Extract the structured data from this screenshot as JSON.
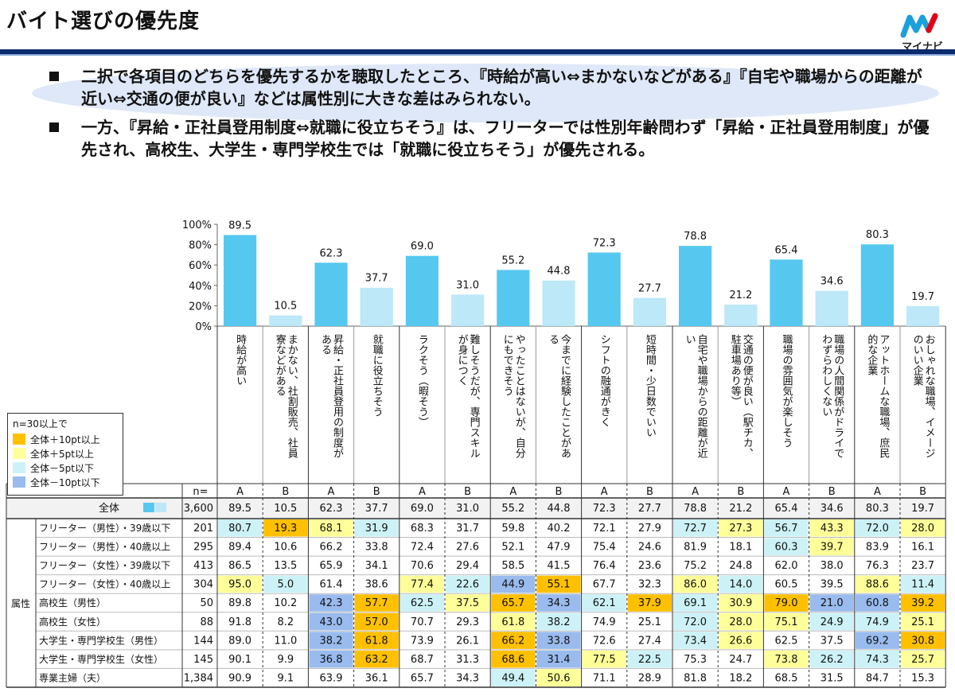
{
  "header": {
    "title": "バイト選びの優先度",
    "logo_text": "マイナビ",
    "logo_mark": "mynavi-logo-icon"
  },
  "bullets": [
    "二択で各項目のどちらを優先するかを聴取したところ、『時給が高い⇔まかないなどがある』『自宅や職場からの距離が近い⇔交通の便が良い』などは属性別に大きな差はみられない。",
    "一方、『昇給・正社員登用制度⇔就職に役立ちそう』は、フリーターでは性別年齢問わず「昇給・正社員登用制度」が優先され、高校生、大学生・専門学校生では「就職に役立ちそう」が優先される。"
  ],
  "legend": {
    "title": "n=30以上で",
    "items": [
      {
        "label": "全体＋10pt以上",
        "color": "#ffc000"
      },
      {
        "label": "全体＋5pt以上",
        "color": "#ffff99"
      },
      {
        "label": "全体－5pt以下",
        "color": "#ccf2f7"
      },
      {
        "label": "全体－10pt以下",
        "color": "#99bbee"
      }
    ]
  },
  "colors": {
    "bar_a": "#56c8f0",
    "bar_b": "#bce8f8",
    "total_row_bg": "#f2f2f2"
  },
  "chart_data": {
    "type": "bar",
    "ylim": [
      0,
      100
    ],
    "yticks": [
      "0%",
      "20%",
      "40%",
      "60%",
      "80%",
      "100%"
    ],
    "categories": [
      {
        "letter": "A",
        "label": "時給が高い"
      },
      {
        "letter": "B",
        "label": "まかない、社割販売、社員寮などがある"
      },
      {
        "letter": "A",
        "label": "昇給・正社員登用の制度がある"
      },
      {
        "letter": "B",
        "label": "就職に役立ちそう"
      },
      {
        "letter": "A",
        "label": "ラクそう（暇そう）"
      },
      {
        "letter": "B",
        "label": "難しそうだが、専門スキルが身につく"
      },
      {
        "letter": "A",
        "label": "やったことはないが、自分にもできそう"
      },
      {
        "letter": "B",
        "label": "今までに経験したことがある"
      },
      {
        "letter": "A",
        "label": "シフトの融通がきく"
      },
      {
        "letter": "B",
        "label": "短時間・少日数でいい"
      },
      {
        "letter": "A",
        "label": "自宅や職場からの距離が近い"
      },
      {
        "letter": "B",
        "label": "交通の便が良い（駅チカ、駐車場あり等）"
      },
      {
        "letter": "A",
        "label": "職場の雰囲気が楽しそう"
      },
      {
        "letter": "B",
        "label": "職場の人間関係がドライでわずらわしくない"
      },
      {
        "letter": "A",
        "label": "アットホームな職場、庶民的な企業"
      },
      {
        "letter": "B",
        "label": "おしゃれな職場、イメージのいい企業"
      }
    ],
    "overall_values": [
      89.5,
      10.5,
      62.3,
      37.7,
      69.0,
      31.0,
      55.2,
      44.8,
      72.3,
      27.7,
      78.8,
      21.2,
      65.4,
      34.6,
      80.3,
      19.7
    ],
    "table": {
      "n_header": "n=",
      "group_label": "属性",
      "total": {
        "label": "全体",
        "n": "3,600",
        "values": [
          "89.5",
          "10.5",
          "62.3",
          "37.7",
          "69.0",
          "31.0",
          "55.2",
          "44.8",
          "72.3",
          "27.7",
          "78.8",
          "21.2",
          "65.4",
          "34.6",
          "80.3",
          "19.7"
        ]
      },
      "rows": [
        {
          "label": "フリーター（男性）・39歳以下",
          "n": "201",
          "values": [
            "80.7",
            "19.3",
            "68.1",
            "31.9",
            "68.3",
            "31.7",
            "59.8",
            "40.2",
            "72.1",
            "27.9",
            "72.7",
            "27.3",
            "56.7",
            "43.3",
            "72.0",
            "28.0"
          ],
          "levels": [
            -1,
            2,
            1,
            -1,
            0,
            0,
            0,
            0,
            0,
            0,
            -1,
            1,
            -1,
            1,
            -1,
            1
          ]
        },
        {
          "label": "フリーター（男性）・40歳以上",
          "n": "295",
          "values": [
            "89.4",
            "10.6",
            "66.2",
            "33.8",
            "72.4",
            "27.6",
            "52.1",
            "47.9",
            "75.4",
            "24.6",
            "81.9",
            "18.1",
            "60.3",
            "39.7",
            "83.9",
            "16.1"
          ],
          "levels": [
            0,
            0,
            0,
            0,
            0,
            0,
            0,
            0,
            0,
            0,
            0,
            0,
            -1,
            1,
            0,
            0
          ]
        },
        {
          "label": "フリーター（女性）・39歳以下",
          "n": "413",
          "values": [
            "86.5",
            "13.5",
            "65.9",
            "34.1",
            "70.6",
            "29.4",
            "58.5",
            "41.5",
            "76.4",
            "23.6",
            "75.2",
            "24.8",
            "62.0",
            "38.0",
            "76.3",
            "23.7"
          ],
          "levels": [
            0,
            0,
            0,
            0,
            0,
            0,
            0,
            0,
            0,
            0,
            0,
            0,
            0,
            0,
            0,
            0
          ]
        },
        {
          "label": "フリーター（女性）・40歳以上",
          "n": "304",
          "values": [
            "95.0",
            "5.0",
            "61.4",
            "38.6",
            "77.4",
            "22.6",
            "44.9",
            "55.1",
            "67.7",
            "32.3",
            "86.0",
            "14.0",
            "60.5",
            "39.5",
            "88.6",
            "11.4"
          ],
          "levels": [
            1,
            -1,
            0,
            0,
            1,
            -1,
            -2,
            2,
            0,
            0,
            1,
            -1,
            0,
            0,
            1,
            -1
          ]
        },
        {
          "label": "高校生（男性）",
          "n": "50",
          "values": [
            "89.8",
            "10.2",
            "42.3",
            "57.7",
            "62.5",
            "37.5",
            "65.7",
            "34.3",
            "62.1",
            "37.9",
            "69.1",
            "30.9",
            "79.0",
            "21.0",
            "60.8",
            "39.2"
          ],
          "levels": [
            0,
            0,
            -2,
            2,
            -1,
            1,
            2,
            -2,
            -1,
            2,
            -1,
            1,
            2,
            -2,
            -2,
            2
          ]
        },
        {
          "label": "高校生（女性）",
          "n": "88",
          "values": [
            "91.8",
            "8.2",
            "43.0",
            "57.0",
            "70.7",
            "29.3",
            "61.8",
            "38.2",
            "74.9",
            "25.1",
            "72.0",
            "28.0",
            "75.1",
            "24.9",
            "74.9",
            "25.1"
          ],
          "levels": [
            0,
            0,
            -2,
            2,
            0,
            0,
            1,
            -1,
            0,
            0,
            -1,
            1,
            1,
            -1,
            -1,
            1
          ]
        },
        {
          "label": "大学生・専門学校生（男性）",
          "n": "144",
          "values": [
            "89.0",
            "11.0",
            "38.2",
            "61.8",
            "73.9",
            "26.1",
            "66.2",
            "33.8",
            "72.6",
            "27.4",
            "73.4",
            "26.6",
            "62.5",
            "37.5",
            "69.2",
            "30.8"
          ],
          "levels": [
            0,
            0,
            -2,
            2,
            0,
            0,
            2,
            -2,
            0,
            0,
            -1,
            1,
            0,
            0,
            -2,
            2
          ]
        },
        {
          "label": "大学生・専門学校生（女性）",
          "n": "145",
          "values": [
            "90.1",
            "9.9",
            "36.8",
            "63.2",
            "68.7",
            "31.3",
            "68.6",
            "31.4",
            "77.5",
            "22.5",
            "75.3",
            "24.7",
            "73.8",
            "26.2",
            "74.3",
            "25.7"
          ],
          "levels": [
            0,
            0,
            -2,
            2,
            0,
            0,
            2,
            -2,
            1,
            -1,
            0,
            0,
            1,
            -1,
            -1,
            1
          ]
        },
        {
          "label": "専業主婦（夫）",
          "n": "1,384",
          "values": [
            "90.9",
            "9.1",
            "63.9",
            "36.1",
            "65.7",
            "34.3",
            "49.4",
            "50.6",
            "71.1",
            "28.9",
            "81.8",
            "18.2",
            "68.5",
            "31.5",
            "84.7",
            "15.3"
          ],
          "levels": [
            0,
            0,
            0,
            0,
            0,
            0,
            -1,
            1,
            0,
            0,
            0,
            0,
            0,
            0,
            0,
            0
          ]
        }
      ]
    }
  }
}
